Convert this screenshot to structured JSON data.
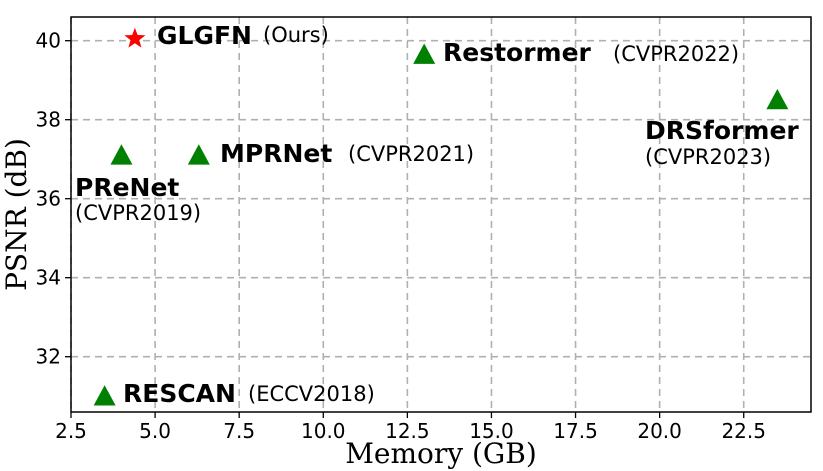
{
  "chart_data": {
    "type": "scatter",
    "xlabel": "Memory (GB)",
    "ylabel": "PSNR (dB)",
    "xlim": [
      2.5,
      24.5
    ],
    "ylim": [
      30.6,
      40.6
    ],
    "xticks": [
      "2.5",
      "5.0",
      "7.5",
      "10.0",
      "12.5",
      "15.0",
      "17.5",
      "20.0",
      "22.5"
    ],
    "yticks": [
      "32",
      "34",
      "36",
      "38",
      "40"
    ],
    "grid": true,
    "points": [
      {
        "name": "GLGFN",
        "venue": "(Ours)",
        "x": 4.4,
        "y": 40.05,
        "marker": "star",
        "color": "#ff0000"
      },
      {
        "name": "Restormer",
        "venue": "(CVPR2022)",
        "x": 13.0,
        "y": 39.65,
        "marker": "triangle",
        "color": "#008000"
      },
      {
        "name": "DRSformer",
        "venue": "(CVPR2023)",
        "x": 23.5,
        "y": 38.5,
        "marker": "triangle",
        "color": "#008000"
      },
      {
        "name": "MPRNet",
        "venue": "(CVPR2021)",
        "x": 6.3,
        "y": 37.1,
        "marker": "triangle",
        "color": "#008000"
      },
      {
        "name": "PReNet",
        "venue": "(CVPR2019)",
        "x": 4.0,
        "y": 37.1,
        "marker": "triangle",
        "color": "#008000"
      },
      {
        "name": "RESCAN",
        "venue": "(ECCV2018)",
        "x": 3.5,
        "y": 31.0,
        "marker": "triangle",
        "color": "#008000"
      }
    ]
  }
}
